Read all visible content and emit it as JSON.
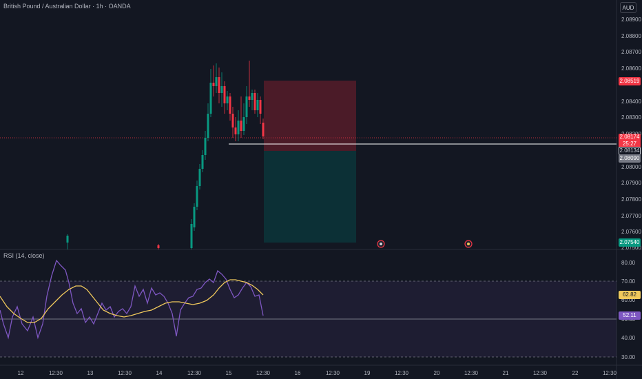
{
  "header": {
    "symbol_title": "British Pound / Australian Dollar · 1h · OANDA",
    "currency_button": "AUD"
  },
  "price_axis": {
    "labels": [
      "2.08900",
      "2.08800",
      "2.08700",
      "2.08600",
      "2.08400",
      "2.08300",
      "2.08200",
      "2.08000",
      "2.07900",
      "2.07800",
      "2.07700",
      "2.07600",
      "2.07500"
    ],
    "badges": {
      "target_top": "2.08519",
      "current_price": "2.08174",
      "countdown": "25:27",
      "entry": "2.08134",
      "stop": "2.08090",
      "target_bottom": "2.07540"
    }
  },
  "rsi_panel": {
    "title": "RSI (14, close)",
    "axis_labels": [
      "80.00",
      "70.00",
      "60.00",
      "50.00",
      "40.00",
      "30.00"
    ],
    "badges": {
      "ma_value": "62.82",
      "rsi_value": "52.11"
    }
  },
  "time_axis": {
    "labels": [
      "12",
      "12:30",
      "13",
      "12:30",
      "14",
      "12:30",
      "15",
      "12:30",
      "16",
      "12:30",
      "19",
      "12:30",
      "20",
      "12:30",
      "21",
      "12:30",
      "22",
      "12:30"
    ]
  },
  "colors": {
    "background": "#131722",
    "up": "#089981",
    "down": "#f23645",
    "rsi_line": "#7e57c2",
    "ma_line": "#f0c95c"
  },
  "events": [
    {
      "icon": "news-event-icon"
    },
    {
      "icon": "news-event-icon"
    }
  ]
}
